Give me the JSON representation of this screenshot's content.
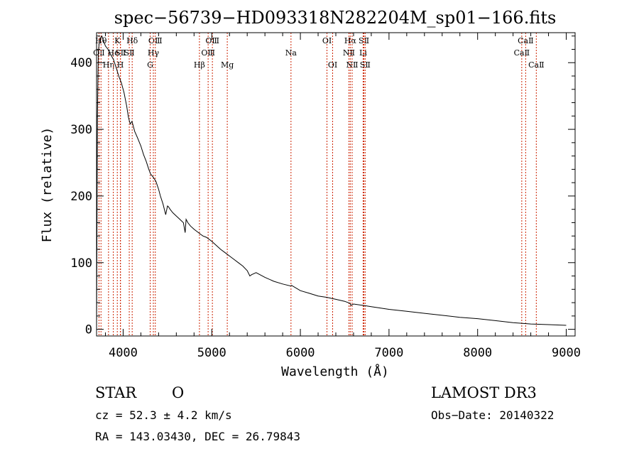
{
  "chart_data": {
    "type": "line",
    "title": "spec−56739−HD093318N282204M_sp01−166.fits",
    "xlabel": "Wavelength (Å)",
    "ylabel": "Flux (relative)",
    "xlim": [
      3700,
      9100
    ],
    "ylim": [
      -10,
      445
    ],
    "xticks": [
      4000,
      5000,
      6000,
      7000,
      8000,
      9000
    ],
    "yticks": [
      0,
      100,
      200,
      300,
      400
    ],
    "series": [
      {
        "name": "flux",
        "x": [
          3700,
          3710,
          3720,
          3730,
          3740,
          3760,
          3780,
          3800,
          3830,
          3860,
          3890,
          3920,
          3950,
          3980,
          4010,
          4040,
          4060,
          4080,
          4100,
          4130,
          4160,
          4200,
          4230,
          4260,
          4290,
          4310,
          4340,
          4370,
          4400,
          4420,
          4450,
          4480,
          4500,
          4510,
          4530,
          4560,
          4600,
          4640,
          4680,
          4700,
          4710,
          4730,
          4760,
          4800,
          4850,
          4880,
          4900,
          4940,
          5000,
          5050,
          5100,
          5150,
          5200,
          5250,
          5300,
          5350,
          5400,
          5430,
          5450,
          5500,
          5600,
          5700,
          5800,
          5890,
          5900,
          6000,
          6100,
          6200,
          6300,
          6400,
          6500,
          6560,
          6570,
          6600,
          6700,
          6800,
          7000,
          7200,
          7400,
          7600,
          7800,
          8000,
          8200,
          8400,
          8600,
          8800,
          9000
        ],
        "y": [
          0,
          320,
          415,
          430,
          436,
          440,
          432,
          425,
          420,
          412,
          405,
          393,
          380,
          370,
          355,
          335,
          318,
          308,
          312,
          297,
          288,
          275,
          262,
          252,
          240,
          233,
          228,
          222,
          210,
          200,
          188,
          172,
          185,
          184,
          180,
          175,
          170,
          165,
          160,
          145,
          165,
          160,
          155,
          150,
          145,
          142,
          140,
          138,
          132,
          126,
          120,
          115,
          110,
          105,
          100,
          95,
          88,
          80,
          82,
          85,
          78,
          72,
          68,
          65,
          66,
          58,
          54,
          50,
          48,
          45,
          42,
          39,
          36,
          38,
          36,
          34,
          30,
          27,
          24,
          21,
          18,
          16,
          13,
          10,
          8,
          7,
          6
        ]
      }
    ],
    "annotations": {
      "lines": [
        {
          "label": "OⅡ",
          "wavelength": 3727,
          "row": 1
        },
        {
          "label": "Hθ",
          "wavelength": 3750,
          "row": 0
        },
        {
          "label": "Hη",
          "wavelength": 3835,
          "row": 2
        },
        {
          "label": "He",
          "wavelength": 3889,
          "row": 1
        },
        {
          "label": "K",
          "wavelength": 3934,
          "row": 0
        },
        {
          "label": "SⅡ",
          "wavelength": 3970,
          "row": 1
        },
        {
          "label": "H",
          "wavelength": 3969,
          "row": 2
        },
        {
          "label": "Hδ",
          "wavelength": 4102,
          "row": 0
        },
        {
          "label": "SⅡ",
          "wavelength": 4069,
          "row": 1
        },
        {
          "label": "OⅢ",
          "wavelength": 4363,
          "row": 0
        },
        {
          "label": "Hγ",
          "wavelength": 4341,
          "row": 1
        },
        {
          "label": "G",
          "wavelength": 4305,
          "row": 2
        },
        {
          "label": "Hβ",
          "wavelength": 4861,
          "row": 2
        },
        {
          "label": "OⅢ",
          "wavelength": 5007,
          "row": 0
        },
        {
          "label": "OⅢ",
          "wavelength": 4959,
          "row": 1
        },
        {
          "label": "Mg",
          "wavelength": 5175,
          "row": 2
        },
        {
          "label": "Na",
          "wavelength": 5894,
          "row": 1
        },
        {
          "label": "OⅠ",
          "wavelength": 6300,
          "row": 0
        },
        {
          "label": "OⅠ",
          "wavelength": 6364,
          "row": 2
        },
        {
          "label": "Hα",
          "wavelength": 6563,
          "row": 0
        },
        {
          "label": "SⅡ",
          "wavelength": 6717,
          "row": 0
        },
        {
          "label": "NⅡ",
          "wavelength": 6548,
          "row": 1
        },
        {
          "label": "Li",
          "wavelength": 6708,
          "row": 1
        },
        {
          "label": "NⅡ",
          "wavelength": 6584,
          "row": 2
        },
        {
          "label": "SⅡ",
          "wavelength": 6731,
          "row": 2
        },
        {
          "label": "CaⅡ",
          "wavelength": 8542,
          "row": 0
        },
        {
          "label": "CaⅡ",
          "wavelength": 8498,
          "row": 1
        },
        {
          "label": "CaⅡ",
          "wavelength": 8662,
          "row": 2
        }
      ],
      "line_color": "#cc2200"
    }
  },
  "info": {
    "object_class": "STAR",
    "subclass": "O",
    "survey": "LAMOST DR3",
    "cz": "cz = 52.3 ± 4.2 km/s",
    "obs_date": "Obs−Date: 20140322",
    "coords": "RA = 143.03430, DEC =  26.79843"
  }
}
